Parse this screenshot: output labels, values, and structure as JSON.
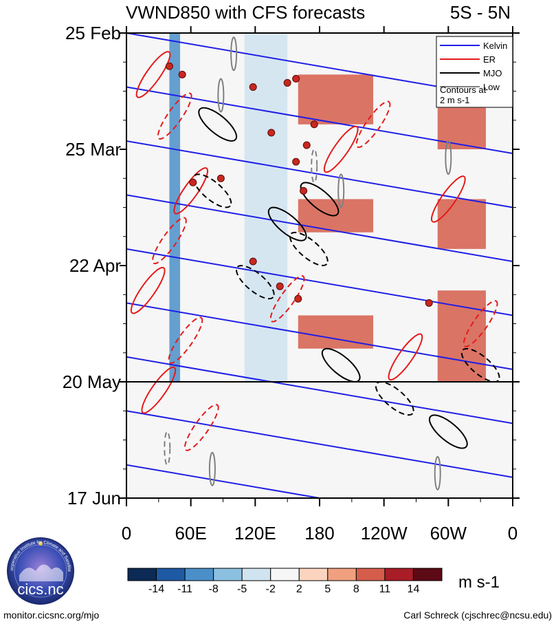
{
  "chart_data": {
    "type": "heatmap",
    "title": "VWND850 with CFS forecasts",
    "region": "5S - 5N",
    "y_labels": [
      "25 Feb",
      "25 Mar",
      "22 Apr",
      "20 May",
      "17 Jun"
    ],
    "x_labels": [
      "0",
      "60E",
      "120E",
      "180",
      "120W",
      "60W",
      "0"
    ],
    "x_range_deg": [
      0,
      360
    ],
    "forecast_start": "20 May",
    "legend": {
      "items": [
        {
          "label": "Kelvin",
          "color": "#1f1fe6"
        },
        {
          "label": "ER",
          "color": "#e61a1a"
        },
        {
          "label": "MJO",
          "color": "#000000"
        },
        {
          "label": "Low",
          "color": "#808080"
        }
      ],
      "note_line1": "Contours at",
      "note_line2": "2 m s-1"
    },
    "colorbar": {
      "ticks": [
        "-14",
        "-11",
        "-8",
        "-5",
        "-2",
        "2",
        "5",
        "8",
        "11",
        "14"
      ],
      "units": "m s-1",
      "colors": [
        "#0b2a55",
        "#1e5aa3",
        "#4a8fc8",
        "#8cc0e0",
        "#cfe3f0",
        "#f6f6f6",
        "#fbd3bf",
        "#f0a07e",
        "#d55d4b",
        "#a81d27",
        "#5c0a15"
      ]
    },
    "anomaly_bands": [
      {
        "lon_start": 40,
        "lon_end": 50,
        "date_start": 0,
        "date_end": 84,
        "value": -10
      },
      {
        "lon_start": 110,
        "lon_end": 150,
        "date_start": 0,
        "date_end": 84,
        "value": -4
      },
      {
        "lon_start": 160,
        "lon_end": 230,
        "date_start": 10,
        "date_end": 22,
        "value": 9
      },
      {
        "lon_start": 160,
        "lon_end": 230,
        "date_start": 40,
        "date_end": 48,
        "value": 9
      },
      {
        "lon_start": 160,
        "lon_end": 230,
        "date_start": 68,
        "date_end": 76,
        "value": 9
      },
      {
        "lon_start": 290,
        "lon_end": 335,
        "date_start": 18,
        "date_end": 28,
        "value": 10
      },
      {
        "lon_start": 290,
        "lon_end": 335,
        "date_start": 40,
        "date_end": 52,
        "value": 10
      },
      {
        "lon_start": 290,
        "lon_end": 335,
        "date_start": 62,
        "date_end": 84,
        "value": 10
      }
    ],
    "tc_markers": [
      [
        40,
        8
      ],
      [
        52,
        10
      ],
      [
        118,
        13
      ],
      [
        135,
        24
      ],
      [
        150,
        12
      ],
      [
        158,
        11
      ],
      [
        165,
        38
      ],
      [
        158,
        31
      ],
      [
        168,
        27
      ],
      [
        175,
        22
      ],
      [
        62,
        36
      ],
      [
        88,
        35
      ],
      [
        118,
        55
      ],
      [
        143,
        61
      ],
      [
        160,
        64
      ],
      [
        282,
        65
      ]
    ]
  },
  "footer": {
    "logo_text": "cics.nc",
    "logo_ring_text": "Cooperative Institute for Climate and Satellites",
    "left": "monitor.cicsnc.org/mjo",
    "right": "Carl Schreck (cjschrec@ncsu.edu)"
  }
}
